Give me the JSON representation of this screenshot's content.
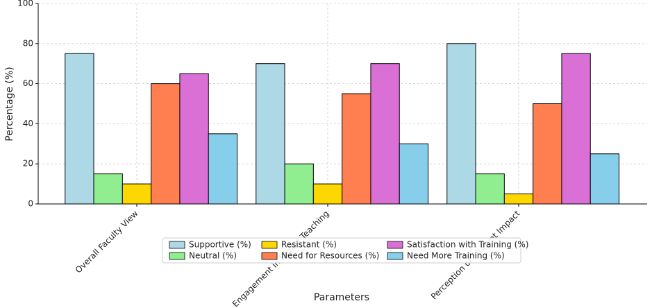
{
  "chart_data": {
    "type": "bar",
    "xlabel": "Parameters",
    "ylabel": "Percentage (%)",
    "categories": [
      "Overall Faculty View",
      "Engagement in Digital Teaching",
      "Perception of Student Impact"
    ],
    "series": [
      {
        "name": "Supportive (%)",
        "color": "#add8e6",
        "values": [
          75,
          70,
          80
        ]
      },
      {
        "name": "Neutral (%)",
        "color": "#90ee90",
        "values": [
          15,
          20,
          15
        ]
      },
      {
        "name": "Resistant (%)",
        "color": "#ffd700",
        "values": [
          10,
          10,
          5
        ]
      },
      {
        "name": "Need for Resources (%)",
        "color": "#ff7f50",
        "values": [
          60,
          55,
          50
        ]
      },
      {
        "name": "Satisfaction with Training (%)",
        "color": "#da70d6",
        "values": [
          65,
          70,
          75
        ]
      },
      {
        "name": "Need More Training (%)",
        "color": "#87ceeb",
        "values": [
          35,
          30,
          25
        ]
      }
    ],
    "ylim": [
      0,
      100
    ],
    "yticks": [
      0,
      20,
      40,
      60,
      80,
      100
    ],
    "grid": true,
    "legend": "lower center"
  }
}
